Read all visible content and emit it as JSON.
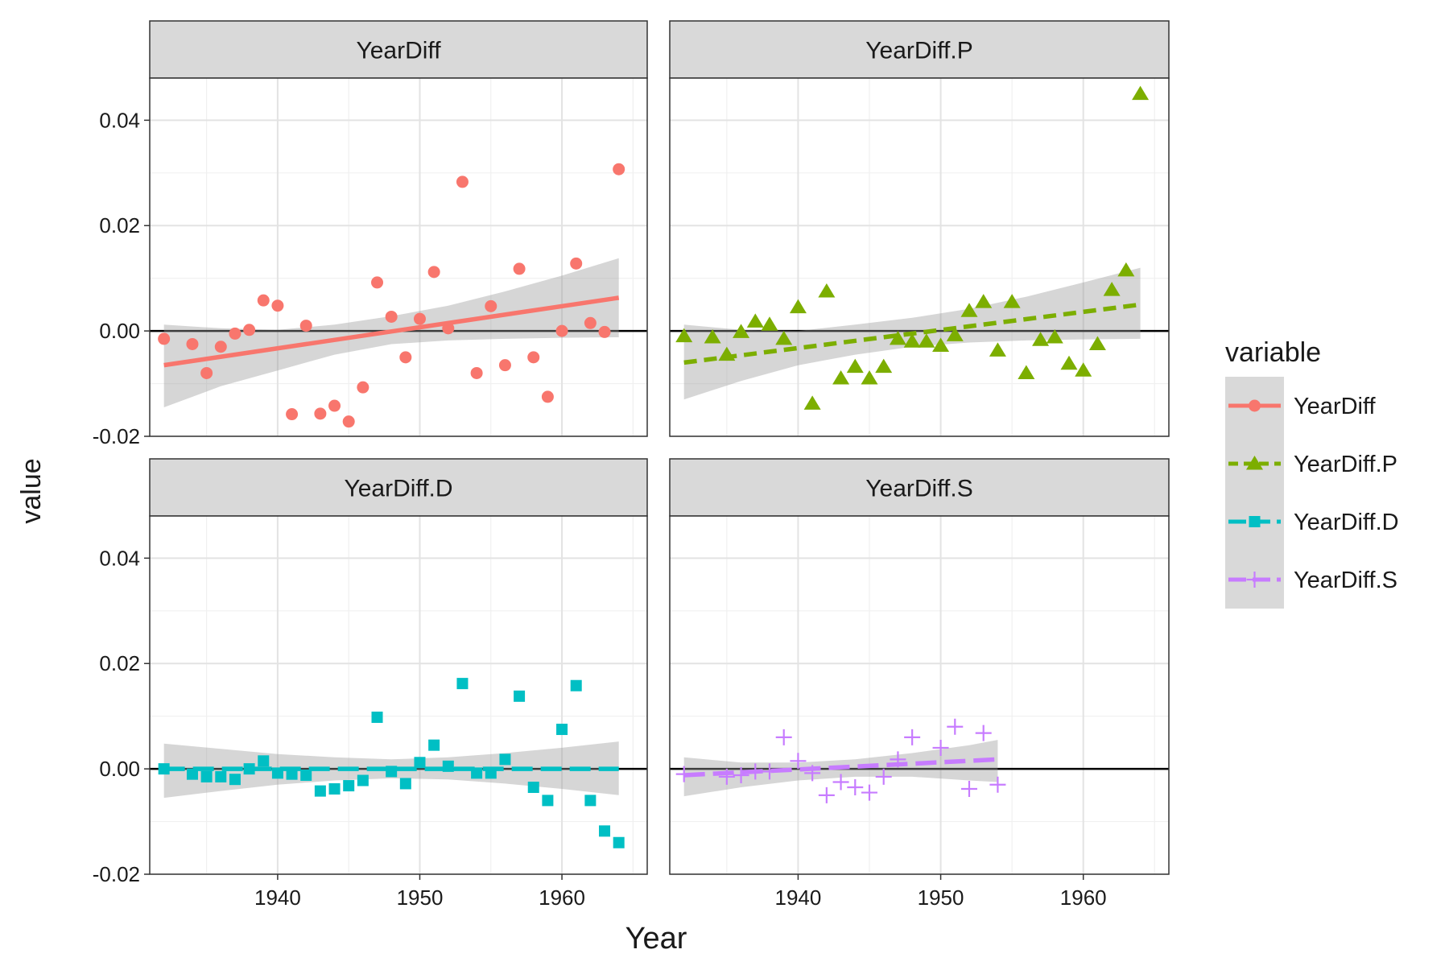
{
  "chart_data": {
    "type": "scatter",
    "xlabel": "Year",
    "ylabel": "value",
    "xlim": [
      1931,
      1966
    ],
    "ylim": [
      -0.02,
      0.048
    ],
    "x_ticks": [
      1940,
      1950,
      1960
    ],
    "x_tick_labels": [
      "1940",
      "1950",
      "1960"
    ],
    "y_ticks": [
      -0.02,
      0.0,
      0.02,
      0.04
    ],
    "y_tick_labels": [
      "-0.02",
      "0.00",
      "0.02",
      "0.04"
    ],
    "grid": true,
    "reference_line_y": 0,
    "legend": {
      "title": "variable",
      "position": "right",
      "items": [
        "YearDiff",
        "YearDiff.P",
        "YearDiff.D",
        "YearDiff.S"
      ]
    },
    "facets": [
      {
        "name": "YearDiff",
        "color": "#F8766D",
        "marker": "circle",
        "line_style": "solid",
        "points": [
          [
            1932,
            -0.0015
          ],
          [
            1934,
            -0.0025
          ],
          [
            1935,
            -0.008
          ],
          [
            1936,
            -0.003
          ],
          [
            1937,
            -0.0005
          ],
          [
            1938,
            0.0002
          ],
          [
            1939,
            0.0058
          ],
          [
            1940,
            0.0048
          ],
          [
            1941,
            -0.0158
          ],
          [
            1942,
            0.001
          ],
          [
            1943,
            -0.0157
          ],
          [
            1944,
            -0.0142
          ],
          [
            1945,
            -0.0172
          ],
          [
            1946,
            -0.0107
          ],
          [
            1947,
            0.0092
          ],
          [
            1948,
            0.0027
          ],
          [
            1949,
            -0.005
          ],
          [
            1950,
            0.0023
          ],
          [
            1951,
            0.0112
          ],
          [
            1952,
            0.0005
          ],
          [
            1953,
            0.0283
          ],
          [
            1954,
            -0.008
          ],
          [
            1955,
            0.0047
          ],
          [
            1956,
            -0.0065
          ],
          [
            1957,
            0.0118
          ],
          [
            1958,
            -0.005
          ],
          [
            1959,
            -0.0125
          ],
          [
            1960,
            0.0
          ],
          [
            1961,
            0.0128
          ],
          [
            1962,
            0.0015
          ],
          [
            1963,
            -0.0002
          ],
          [
            1964,
            0.0307
          ]
        ],
        "trend": {
          "x": [
            1932,
            1964
          ],
          "y": [
            -0.0065,
            0.0063
          ]
        },
        "band": {
          "x": [
            1932,
            1936,
            1940,
            1944,
            1948,
            1952,
            1956,
            1960,
            1964
          ],
          "lower": [
            -0.0145,
            -0.0105,
            -0.0075,
            -0.0045,
            -0.0025,
            -0.0018,
            -0.0015,
            -0.0013,
            -0.0012
          ],
          "upper": [
            0.0012,
            0.0005,
            0.0002,
            0.0012,
            0.0028,
            0.0048,
            0.0075,
            0.0105,
            0.0138
          ]
        }
      },
      {
        "name": "YearDiff.P",
        "color": "#7CAE00",
        "marker": "triangle",
        "line_style": "dashed",
        "points": [
          [
            1932,
            -0.001
          ],
          [
            1934,
            -0.0012
          ],
          [
            1935,
            -0.0045
          ],
          [
            1936,
            -0.0002
          ],
          [
            1937,
            0.0018
          ],
          [
            1938,
            0.0012
          ],
          [
            1939,
            -0.0015
          ],
          [
            1940,
            0.0045
          ],
          [
            1941,
            -0.0138
          ],
          [
            1942,
            0.0075
          ],
          [
            1943,
            -0.009
          ],
          [
            1944,
            -0.0068
          ],
          [
            1945,
            -0.009
          ],
          [
            1946,
            -0.0068
          ],
          [
            1947,
            -0.0015
          ],
          [
            1948,
            -0.002
          ],
          [
            1949,
            -0.002
          ],
          [
            1950,
            -0.0028
          ],
          [
            1951,
            -0.0008
          ],
          [
            1952,
            0.0038
          ],
          [
            1953,
            0.0055
          ],
          [
            1954,
            -0.0037
          ],
          [
            1955,
            0.0055
          ],
          [
            1956,
            -0.008
          ],
          [
            1957,
            -0.0017
          ],
          [
            1958,
            -0.0012
          ],
          [
            1959,
            -0.0062
          ],
          [
            1960,
            -0.0075
          ],
          [
            1961,
            -0.0025
          ],
          [
            1962,
            0.0078
          ],
          [
            1963,
            0.0115
          ],
          [
            1964,
            0.045
          ]
        ],
        "trend": {
          "x": [
            1932,
            1964
          ],
          "y": [
            -0.006,
            0.005
          ]
        },
        "band": {
          "x": [
            1932,
            1936,
            1940,
            1944,
            1948,
            1952,
            1956,
            1960,
            1964
          ],
          "lower": [
            -0.013,
            -0.0095,
            -0.0065,
            -0.0045,
            -0.003,
            -0.0022,
            -0.0018,
            -0.0016,
            -0.0015
          ],
          "upper": [
            0.0012,
            0.0002,
            0.0,
            0.0012,
            0.0025,
            0.0042,
            0.0065,
            0.0092,
            0.012
          ]
        }
      },
      {
        "name": "YearDiff.D",
        "color": "#00BFC4",
        "marker": "square",
        "line_style": "longdash",
        "points": [
          [
            1932,
            0.0
          ],
          [
            1934,
            -0.001
          ],
          [
            1935,
            -0.0015
          ],
          [
            1936,
            -0.0015
          ],
          [
            1937,
            -0.002
          ],
          [
            1938,
            0.0
          ],
          [
            1939,
            0.0015
          ],
          [
            1940,
            -0.0008
          ],
          [
            1941,
            -0.001
          ],
          [
            1942,
            -0.0012
          ],
          [
            1943,
            -0.0042
          ],
          [
            1944,
            -0.0038
          ],
          [
            1945,
            -0.0032
          ],
          [
            1946,
            -0.0022
          ],
          [
            1947,
            0.0098
          ],
          [
            1948,
            -0.0005
          ],
          [
            1949,
            -0.0028
          ],
          [
            1950,
            0.0012
          ],
          [
            1951,
            0.0045
          ],
          [
            1952,
            0.0005
          ],
          [
            1953,
            0.0162
          ],
          [
            1954,
            -0.0008
          ],
          [
            1955,
            -0.0008
          ],
          [
            1956,
            0.0018
          ],
          [
            1957,
            0.0138
          ],
          [
            1958,
            -0.0035
          ],
          [
            1959,
            -0.006
          ],
          [
            1960,
            0.0075
          ],
          [
            1961,
            0.0158
          ],
          [
            1962,
            -0.006
          ],
          [
            1963,
            -0.0118
          ],
          [
            1964,
            -0.014
          ]
        ],
        "trend": {
          "x": [
            1932,
            1964
          ],
          "y": [
            0.0,
            0.0
          ]
        },
        "band": {
          "x": [
            1932,
            1936,
            1940,
            1944,
            1948,
            1952,
            1956,
            1960,
            1964
          ],
          "lower": [
            -0.0055,
            -0.0042,
            -0.003,
            -0.0022,
            -0.0018,
            -0.002,
            -0.0028,
            -0.0038,
            -0.005
          ],
          "upper": [
            0.0048,
            0.0038,
            0.0028,
            0.0022,
            0.0018,
            0.0022,
            0.003,
            0.004,
            0.0052
          ]
        }
      },
      {
        "name": "YearDiff.S",
        "color": "#C77CFF",
        "marker": "cross",
        "line_style": "longdash",
        "points": [
          [
            1932,
            -0.001
          ],
          [
            1935,
            -0.0015
          ],
          [
            1936,
            -0.0012
          ],
          [
            1937,
            -0.0005
          ],
          [
            1938,
            -0.0005
          ],
          [
            1939,
            0.006
          ],
          [
            1940,
            0.0015
          ],
          [
            1941,
            -0.0008
          ],
          [
            1942,
            -0.005
          ],
          [
            1943,
            -0.0025
          ],
          [
            1944,
            -0.0035
          ],
          [
            1945,
            -0.0045
          ],
          [
            1946,
            -0.0015
          ],
          [
            1947,
            0.0018
          ],
          [
            1948,
            0.006
          ],
          [
            1950,
            0.004
          ],
          [
            1951,
            0.008
          ],
          [
            1952,
            -0.0038
          ],
          [
            1953,
            0.0068
          ],
          [
            1954,
            -0.003
          ]
        ],
        "trend": {
          "x": [
            1932,
            1954
          ],
          "y": [
            -0.0012,
            0.0018
          ]
        },
        "band": {
          "x": [
            1932,
            1936,
            1940,
            1944,
            1948,
            1952,
            1954
          ],
          "lower": [
            -0.0052,
            -0.0035,
            -0.0022,
            -0.0015,
            -0.0015,
            -0.0022,
            -0.0025
          ],
          "upper": [
            0.0022,
            0.0012,
            0.0012,
            0.0018,
            0.003,
            0.0045,
            0.0055
          ]
        }
      }
    ]
  }
}
